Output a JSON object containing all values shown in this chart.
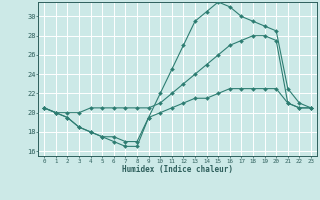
{
  "xlabel": "Humidex (Indice chaleur)",
  "xlim": [
    -0.5,
    23.5
  ],
  "ylim": [
    15.5,
    31.5
  ],
  "xticks": [
    0,
    1,
    2,
    3,
    4,
    5,
    6,
    7,
    8,
    9,
    10,
    11,
    12,
    13,
    14,
    15,
    16,
    17,
    18,
    19,
    20,
    21,
    22,
    23
  ],
  "yticks": [
    16,
    18,
    20,
    22,
    24,
    26,
    28,
    30
  ],
  "background_color": "#cce9e7",
  "grid_color": "#ffffff",
  "line_color": "#2e7d72",
  "line1_x": [
    0,
    1,
    2,
    3,
    4,
    5,
    6,
    7,
    8,
    9,
    10,
    11,
    12,
    13,
    14,
    15,
    16,
    17,
    18,
    19,
    20,
    21,
    22,
    23
  ],
  "line1_y": [
    20.5,
    20.0,
    19.5,
    18.5,
    18.0,
    17.5,
    17.0,
    16.5,
    16.5,
    19.5,
    22.0,
    24.5,
    27.0,
    29.5,
    30.5,
    31.5,
    31.0,
    30.0,
    29.5,
    29.0,
    28.5,
    22.5,
    21.0,
    20.5
  ],
  "line2_x": [
    0,
    1,
    2,
    3,
    4,
    5,
    6,
    7,
    8,
    9,
    10,
    11,
    12,
    13,
    14,
    15,
    16,
    17,
    18,
    19,
    20,
    21,
    22,
    23
  ],
  "line2_y": [
    20.5,
    20.0,
    20.0,
    20.0,
    20.5,
    20.5,
    20.5,
    20.5,
    20.5,
    20.5,
    21.0,
    22.0,
    23.0,
    24.0,
    25.0,
    26.0,
    27.0,
    27.5,
    28.0,
    28.0,
    27.5,
    21.0,
    20.5,
    20.5
  ],
  "line3_x": [
    0,
    1,
    2,
    3,
    4,
    5,
    6,
    7,
    8,
    9,
    10,
    11,
    12,
    13,
    14,
    15,
    16,
    17,
    18,
    19,
    20,
    21,
    22,
    23
  ],
  "line3_y": [
    20.5,
    20.0,
    19.5,
    18.5,
    18.0,
    17.5,
    17.5,
    17.0,
    17.0,
    19.5,
    20.0,
    20.5,
    21.0,
    21.5,
    21.5,
    22.0,
    22.5,
    22.5,
    22.5,
    22.5,
    22.5,
    21.0,
    20.5,
    20.5
  ]
}
